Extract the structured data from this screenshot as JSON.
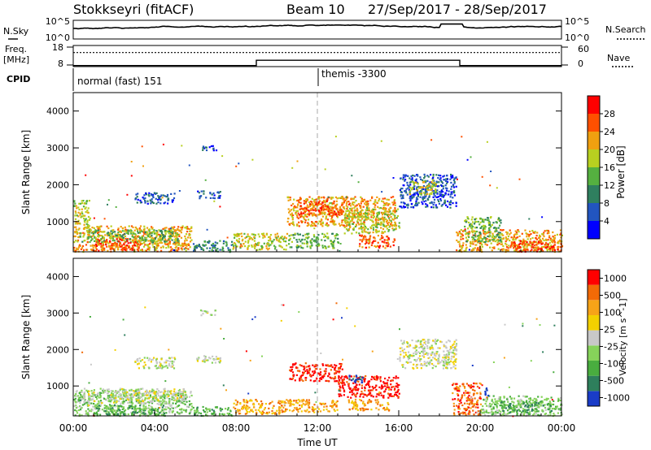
{
  "header": {
    "station": "Stokkseyri (fitACF)",
    "beam": "Beam 10",
    "date_range": "27/Sep/2017 - 28/Sep/2017"
  },
  "nsky_panel": {
    "left_label": "N.Sky",
    "left_ticks": [
      "10^5",
      "10^0"
    ],
    "right_label": "N.Search",
    "right_ticks": [
      "10^5",
      "10^0"
    ]
  },
  "freq_panel": {
    "left_label_1": "Freq.",
    "left_label_2": "[MHz]",
    "left_ticks": [
      "18",
      "8"
    ],
    "right_label": "Nave",
    "right_ticks": [
      "60",
      "0"
    ]
  },
  "cpid_panel": {
    "label": "CPID",
    "mode_1": "normal (fast) 151",
    "mode_2": "themis -3300"
  },
  "chart_data": [
    {
      "type": "heatmap",
      "name": "power",
      "ylabel": "Slant Range [km]",
      "xlabel": "",
      "x_range_hours": [
        0,
        24
      ],
      "ylim": [
        180,
        4500
      ],
      "yticks": [
        "1000",
        "2000",
        "3000",
        "4000"
      ],
      "colorbar_label": "Power [dB]",
      "colorbar_ticks": [
        "4",
        "8",
        "12",
        "16",
        "20",
        "24",
        "28"
      ],
      "colors": [
        "#0000ff",
        "#2255c0",
        "#2f7f5f",
        "#55b040",
        "#b8d020",
        "#f0a010",
        "#ff5000",
        "#ff0000"
      ],
      "regions": [
        {
          "x0": 0.0,
          "x1": 5.8,
          "y0": 200,
          "y1": 900,
          "level": 5
        },
        {
          "x0": 0.3,
          "x1": 5.2,
          "y0": 450,
          "y1": 800,
          "level": 3
        },
        {
          "x0": 1.0,
          "x1": 3.2,
          "y0": 230,
          "y1": 550,
          "level": 6
        },
        {
          "x0": 5.8,
          "x1": 7.8,
          "y0": 200,
          "y1": 500,
          "level": 2
        },
        {
          "x0": 7.8,
          "x1": 10.5,
          "y0": 250,
          "y1": 700,
          "level": 4
        },
        {
          "x0": 10.5,
          "x1": 13.0,
          "y0": 300,
          "y1": 700,
          "level": 3
        },
        {
          "x0": 10.5,
          "x1": 15.8,
          "y0": 900,
          "y1": 1700,
          "level": 5
        },
        {
          "x0": 11.0,
          "x1": 13.3,
          "y0": 1200,
          "y1": 1600,
          "level": 6
        },
        {
          "x0": 13.3,
          "x1": 16.0,
          "y0": 700,
          "y1": 1400,
          "level": 4
        },
        {
          "x0": 14.0,
          "x1": 15.8,
          "y0": 300,
          "y1": 650,
          "level": 6
        },
        {
          "x0": 16.0,
          "x1": 18.8,
          "y0": 1400,
          "y1": 2300,
          "level": 1
        },
        {
          "x0": 16.5,
          "x1": 17.8,
          "y0": 1750,
          "y1": 2150,
          "level": 4
        },
        {
          "x0": 18.8,
          "x1": 24.0,
          "y0": 200,
          "y1": 800,
          "level": 5
        },
        {
          "x0": 19.2,
          "x1": 21.0,
          "y0": 450,
          "y1": 1150,
          "level": 3
        },
        {
          "x0": 21.5,
          "x1": 24.0,
          "y0": 200,
          "y1": 500,
          "level": 6
        },
        {
          "x0": 0.0,
          "x1": 0.8,
          "y0": 900,
          "y1": 1600,
          "level": 4
        },
        {
          "x0": 6.0,
          "x1": 7.2,
          "y0": 1650,
          "y1": 1850,
          "level": 1
        },
        {
          "x0": 6.2,
          "x1": 7.0,
          "y0": 2950,
          "y1": 3100,
          "level": 1
        },
        {
          "x0": 3.0,
          "x1": 5.0,
          "y0": 1500,
          "y1": 1800,
          "level": 1
        }
      ]
    },
    {
      "type": "heatmap",
      "name": "velocity",
      "ylabel": "Slant Range [km]",
      "xlabel": "Time UT",
      "x_range_hours": [
        0,
        24
      ],
      "ylim": [
        180,
        4500
      ],
      "yticks": [
        "1000",
        "2000",
        "3000",
        "4000"
      ],
      "xticks": [
        "00:00",
        "04:00",
        "08:00",
        "12:00",
        "16:00",
        "20:00",
        "00:00"
      ],
      "colorbar_label": "Velocity [m s^-1]",
      "colorbar_ticks": [
        "1000",
        "500",
        "100",
        "25",
        "-25",
        "-100",
        "-500",
        "-1000"
      ],
      "colors": [
        "#1a3cc8",
        "#2e7f5c",
        "#49ad3f",
        "#86d35a",
        "#c8c8c8",
        "#f3d000",
        "#f7a318",
        "#f26a06",
        "#ff0000"
      ],
      "regions": [
        {
          "x0": 0.0,
          "x1": 5.8,
          "y0": 200,
          "y1": 900,
          "level": 3
        },
        {
          "x0": 0.5,
          "x1": 5.5,
          "y0": 550,
          "y1": 950,
          "level": 4
        },
        {
          "x0": 1.0,
          "x1": 4.5,
          "y0": 230,
          "y1": 500,
          "level": 2
        },
        {
          "x0": 5.8,
          "x1": 7.8,
          "y0": 200,
          "y1": 450,
          "level": 2
        },
        {
          "x0": 7.8,
          "x1": 10.5,
          "y0": 250,
          "y1": 650,
          "level": 6
        },
        {
          "x0": 10.5,
          "x1": 13.0,
          "y0": 300,
          "y1": 650,
          "level": 6
        },
        {
          "x0": 10.6,
          "x1": 13.2,
          "y0": 1150,
          "y1": 1650,
          "level": 8
        },
        {
          "x0": 13.0,
          "x1": 16.0,
          "y0": 700,
          "y1": 1300,
          "level": 8
        },
        {
          "x0": 13.5,
          "x1": 15.5,
          "y0": 350,
          "y1": 650,
          "level": 6
        },
        {
          "x0": 16.0,
          "x1": 18.8,
          "y0": 1500,
          "y1": 2300,
          "level": 4
        },
        {
          "x0": 18.6,
          "x1": 20.0,
          "y0": 200,
          "y1": 1100,
          "level": 7
        },
        {
          "x0": 20.0,
          "x1": 24.0,
          "y0": 200,
          "y1": 750,
          "level": 3
        },
        {
          "x0": 21.0,
          "x1": 23.5,
          "y0": 300,
          "y1": 600,
          "level": 2
        },
        {
          "x0": 6.0,
          "x1": 7.3,
          "y0": 1650,
          "y1": 1850,
          "level": 4
        },
        {
          "x0": 6.2,
          "x1": 7.0,
          "y0": 2950,
          "y1": 3100,
          "level": 4
        },
        {
          "x0": 3.0,
          "x1": 5.0,
          "y0": 1500,
          "y1": 1800,
          "level": 4
        },
        {
          "x0": 20.2,
          "x1": 20.4,
          "y0": 700,
          "y1": 1000,
          "level": 0
        },
        {
          "x0": 13.5,
          "x1": 14.2,
          "y0": 1100,
          "y1": 1350,
          "level": 0
        }
      ]
    },
    {
      "type": "line",
      "name": "nsky-nsearch",
      "ylim": [
        "10^0",
        "10^5"
      ]
    },
    {
      "type": "line",
      "name": "frequency-nave",
      "series": [
        {
          "name": "Freq.",
          "x": [
            0,
            9,
            9,
            19,
            19,
            24
          ],
          "values": [
            8.5,
            8.5,
            11,
            11,
            8.5,
            8.5
          ]
        },
        {
          "name": "Nave",
          "x": [
            0,
            24
          ],
          "values": [
            40,
            40
          ]
        }
      ],
      "ylim_freq": [
        8,
        18
      ],
      "ylim_nave": [
        0,
        60
      ]
    }
  ]
}
